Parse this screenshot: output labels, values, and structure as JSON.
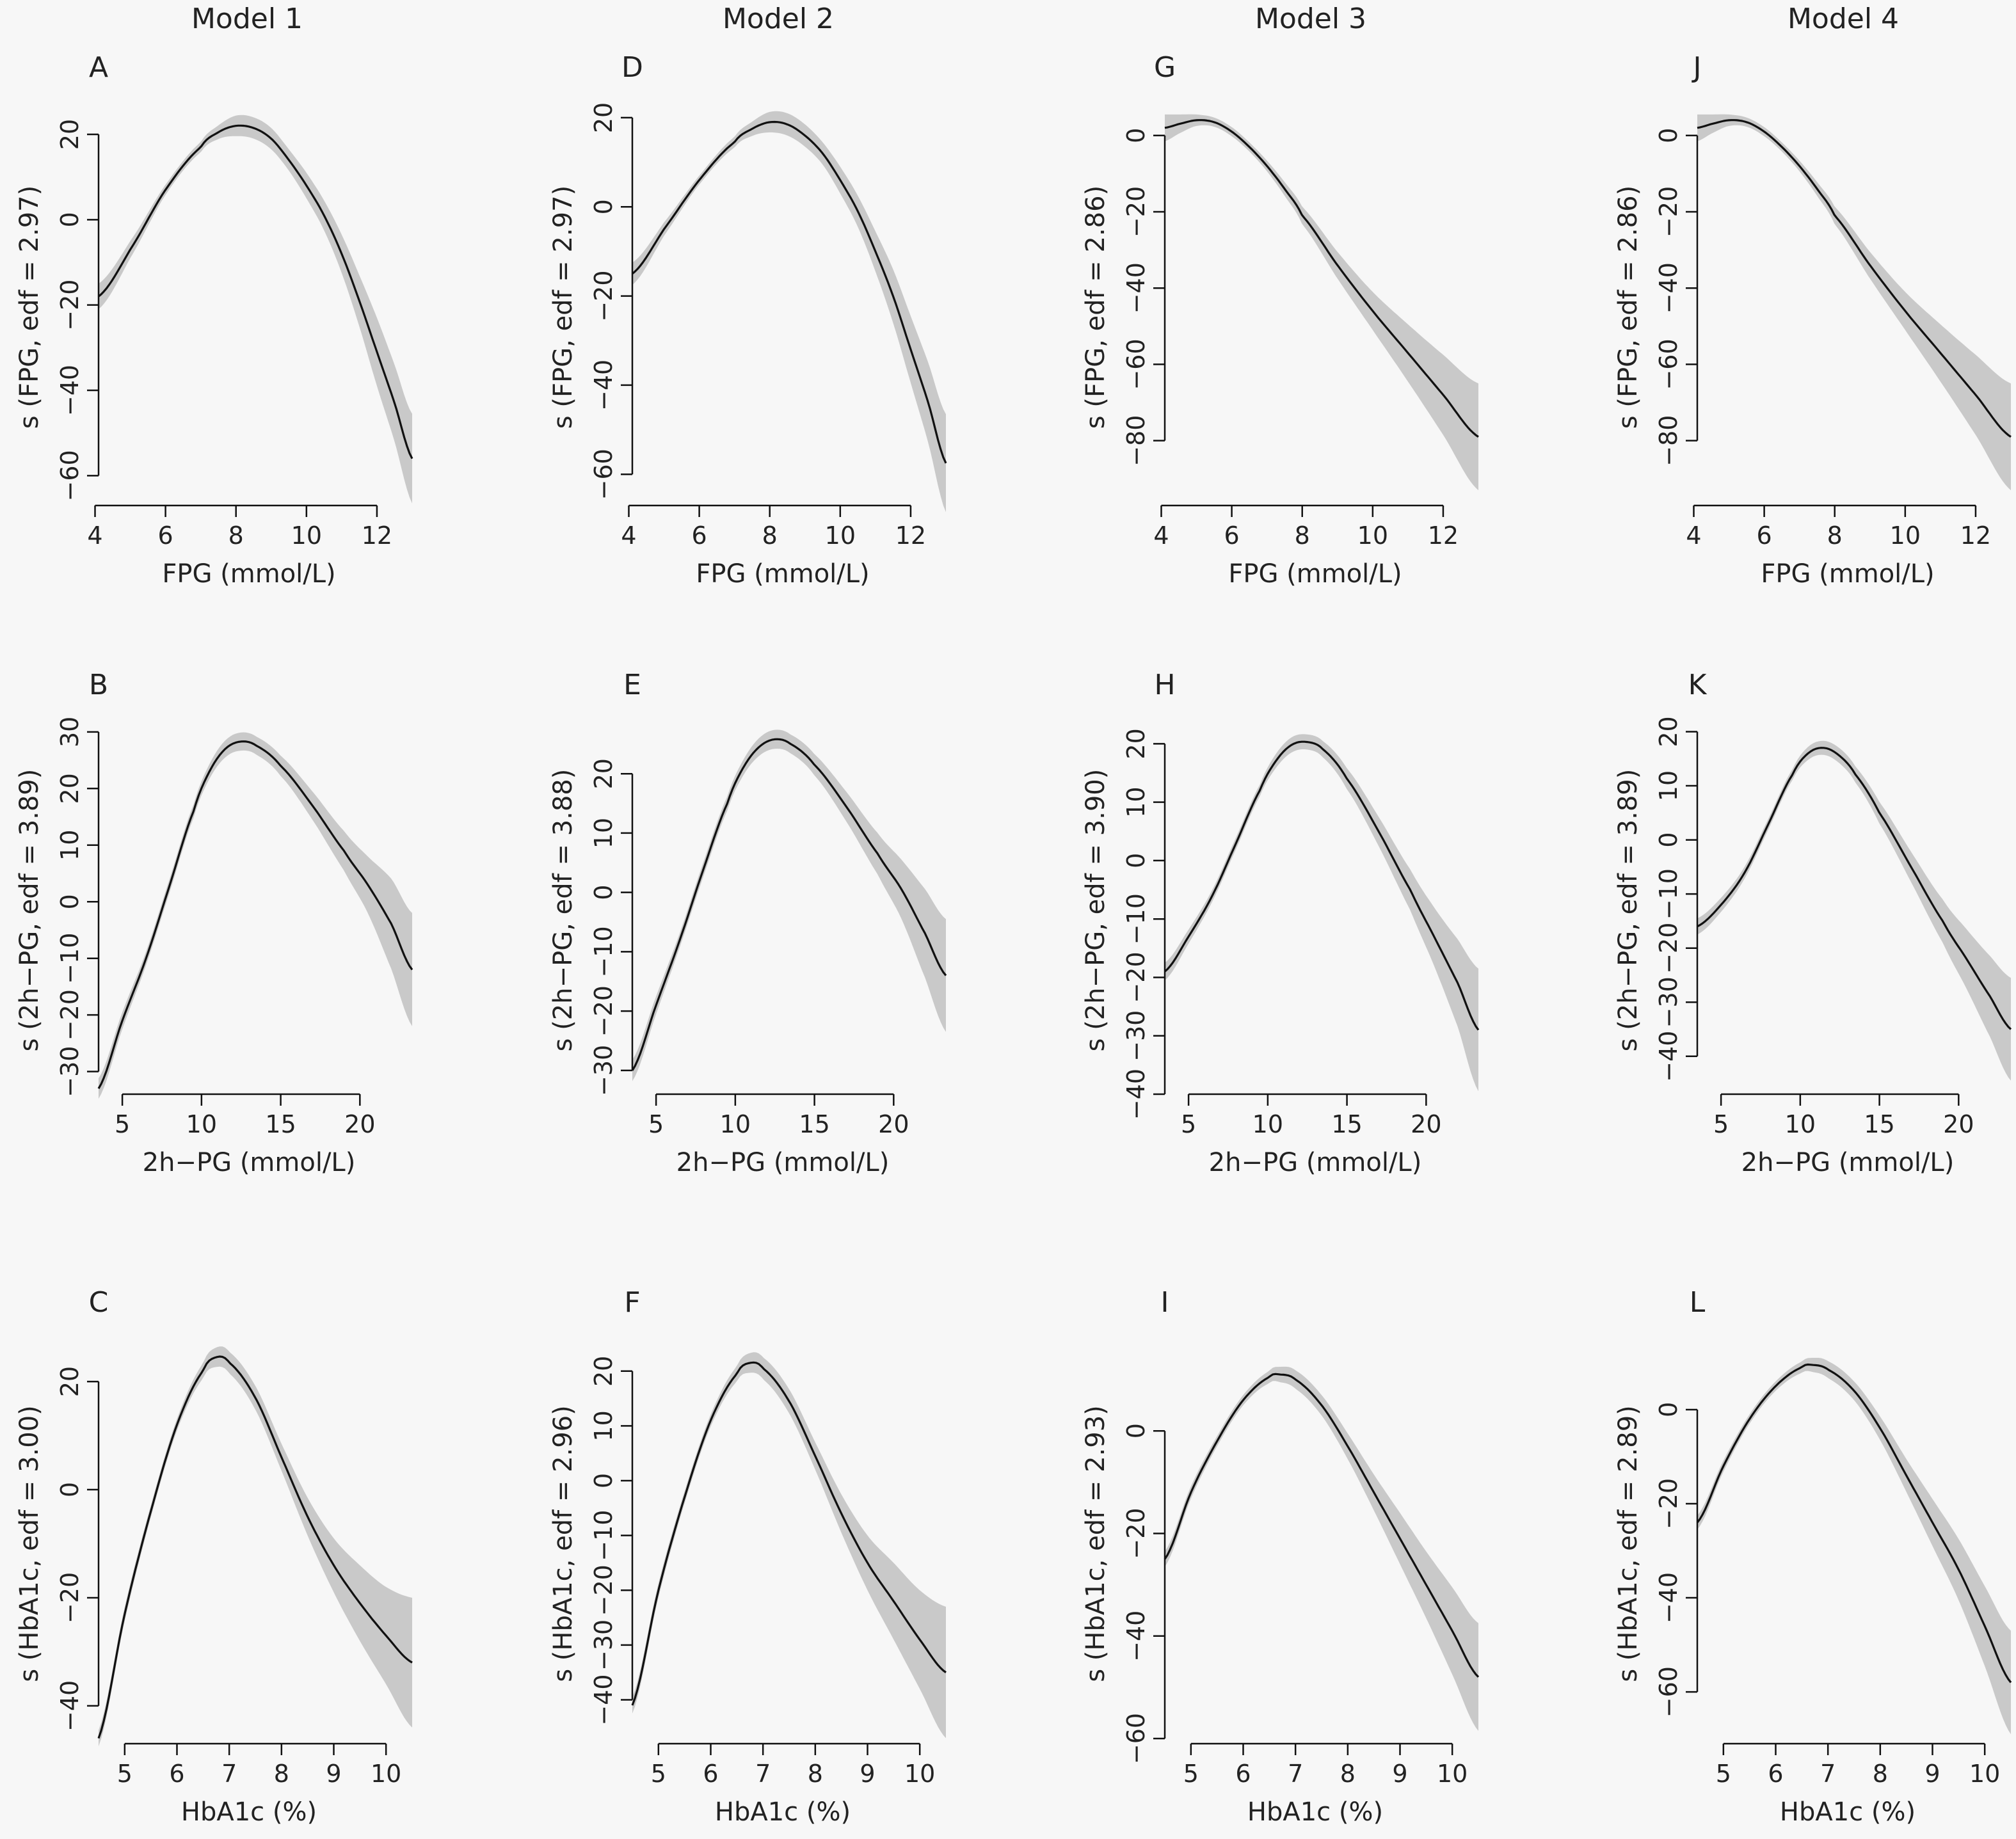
{
  "model_titles": [
    "Model  1",
    "Model  2",
    "Model  3",
    "Model  4"
  ],
  "chart_data": [
    {
      "id": "A",
      "type": "line",
      "model": 1,
      "row": 0,
      "xlabel": "FPG (mmol/L)",
      "ylabel": "s (FPG, edf = 2.97)",
      "xlim": [
        4.1,
        13.0
      ],
      "ylim": [
        -67,
        26
      ],
      "xticks": [
        4,
        6,
        8,
        10,
        12
      ],
      "yticks": [
        20,
        0,
        -20,
        -40,
        -60
      ],
      "x": [
        4.1,
        5,
        6,
        7,
        7.5,
        8,
        8.5,
        9,
        9.5,
        10,
        10.5,
        11,
        11.5,
        12,
        12.5,
        13
      ],
      "y": [
        -18,
        -7,
        7,
        17,
        20.5,
        22,
        21.5,
        19,
        14,
        8,
        1,
        -8,
        -19,
        -31,
        -43,
        -56
      ],
      "band": [
        3,
        2,
        1.2,
        1.2,
        1.6,
        2.4,
        2.5,
        2.5,
        2.5,
        3,
        3.5,
        4.5,
        6,
        8,
        9,
        10.5
      ]
    },
    {
      "id": "B",
      "type": "line",
      "model": 1,
      "row": 1,
      "xlabel": "2h−PG (mmol/L)",
      "ylabel": "s (2h−PG, edf = 3.89)",
      "xlim": [
        3.5,
        23.3
      ],
      "ylim": [
        -34,
        31
      ],
      "xticks": [
        5,
        10,
        15,
        20
      ],
      "yticks": [
        30,
        20,
        10,
        0,
        -10,
        -20,
        -30
      ],
      "x": [
        3.5,
        5,
        6.5,
        8,
        9.5,
        10.5,
        11.5,
        12.5,
        13.5,
        15,
        17,
        19,
        20.5,
        22,
        23.3
      ],
      "y": [
        -33,
        -21,
        -10,
        3,
        16,
        23,
        27,
        28.3,
        27.5,
        24,
        17,
        9,
        3,
        -4,
        -12
      ],
      "band": [
        1.8,
        1.5,
        1.2,
        1.2,
        1.2,
        1.3,
        1.5,
        1.6,
        1.6,
        1.8,
        2.5,
        3.5,
        5,
        8,
        10
      ]
    },
    {
      "id": "C",
      "type": "line",
      "model": 1,
      "row": 2,
      "xlabel": "HbA1c (%)",
      "ylabel": "s (HbA1c, edf = 3.00)",
      "xlim": [
        4.5,
        10.5
      ],
      "ylim": [
        -47,
        27
      ],
      "xticks": [
        5,
        6,
        7,
        8,
        9,
        10
      ],
      "yticks": [
        20,
        0,
        -20,
        -40
      ],
      "x": [
        4.5,
        5,
        5.5,
        6,
        6.5,
        6.75,
        7,
        7.5,
        8,
        8.5,
        9,
        9.5,
        10,
        10.5
      ],
      "y": [
        -46,
        -23,
        -4,
        12,
        22,
        24.5,
        23.5,
        17,
        6,
        -5,
        -14,
        -21,
        -27,
        -32
      ],
      "band": [
        1.5,
        1.3,
        1.1,
        1.1,
        1.4,
        1.8,
        2,
        2.2,
        2.5,
        3.5,
        5,
        7,
        9,
        12
      ]
    },
    {
      "id": "D",
      "type": "line",
      "model": 2,
      "row": 0,
      "xlabel": "FPG (mmol/L)",
      "ylabel": "s (FPG, edf = 2.97)",
      "xlim": [
        4.1,
        13.0
      ],
      "ylim": [
        -67,
        22
      ],
      "xticks": [
        4,
        6,
        8,
        10,
        12
      ],
      "yticks": [
        20,
        0,
        -20,
        -40,
        -60
      ],
      "x": [
        4.1,
        5,
        6,
        7,
        7.5,
        8,
        8.5,
        9,
        9.5,
        10,
        10.5,
        11,
        11.5,
        12,
        12.5,
        13
      ],
      "y": [
        -15,
        -5,
        6,
        14.5,
        17.5,
        19,
        18.5,
        16,
        12,
        6,
        -1,
        -10,
        -20,
        -32,
        -44,
        -57.5
      ],
      "band": [
        2.5,
        1.5,
        1,
        1.2,
        1.6,
        2.3,
        2.5,
        2.5,
        2.5,
        3,
        3.5,
        4.5,
        6,
        7.5,
        9,
        11
      ]
    },
    {
      "id": "E",
      "type": "line",
      "model": 2,
      "row": 1,
      "xlabel": "2h−PG (mmol/L)",
      "ylabel": "s (2h−PG, edf = 3.88)",
      "xlim": [
        3.5,
        23.3
      ],
      "ylim": [
        -34,
        28
      ],
      "xticks": [
        5,
        10,
        15,
        20
      ],
      "yticks": [
        20,
        10,
        0,
        -10,
        -20,
        -30
      ],
      "x": [
        3.5,
        5,
        6.5,
        8,
        9.5,
        10.5,
        11.5,
        12.5,
        13.5,
        15,
        17,
        19,
        20.5,
        22,
        23.3
      ],
      "y": [
        -30,
        -19,
        -8,
        4,
        15,
        21,
        24.5,
        25.8,
        25,
        21.5,
        14.5,
        6.5,
        0.5,
        -7,
        -14
      ],
      "band": [
        1.8,
        1.5,
        1.2,
        1.2,
        1.2,
        1.3,
        1.5,
        1.6,
        1.6,
        1.8,
        2.5,
        3.5,
        5,
        7.5,
        9.5
      ]
    },
    {
      "id": "F",
      "type": "line",
      "model": 2,
      "row": 2,
      "xlabel": "HbA1c (%)",
      "ylabel": "s (HbA1c, edf = 2.96)",
      "xlim": [
        4.5,
        10.5
      ],
      "ylim": [
        -48,
        25
      ],
      "xticks": [
        5,
        6,
        7,
        8,
        9,
        10
      ],
      "yticks": [
        20,
        10,
        0,
        -10,
        -20,
        -30,
        -40
      ],
      "x": [
        4.5,
        5,
        5.5,
        6,
        6.5,
        6.75,
        7,
        7.5,
        8,
        8.5,
        9,
        9.5,
        10,
        10.5
      ],
      "y": [
        -41,
        -20,
        -3,
        11,
        19.5,
        21.5,
        20.5,
        14.5,
        4.5,
        -6,
        -15,
        -22,
        -29,
        -35
      ],
      "band": [
        1.5,
        1.3,
        1.1,
        1.1,
        1.4,
        1.8,
        2,
        2.2,
        2.5,
        3.5,
        5,
        7,
        9,
        12
      ]
    },
    {
      "id": "G",
      "type": "line",
      "model": 3,
      "row": 0,
      "xlabel": "FPG (mmol/L)",
      "ylabel": "s (FPG, edf = 2.86)",
      "xlim": [
        4.1,
        13.0
      ],
      "ylim": [
        -97,
        7
      ],
      "xticks": [
        4,
        6,
        8,
        10,
        12
      ],
      "yticks": [
        0,
        -20,
        -40,
        -60,
        -80
      ],
      "x": [
        4.1,
        4.5,
        5,
        5.5,
        6,
        6.5,
        7,
        7.5,
        8,
        9,
        10,
        11,
        12,
        13
      ],
      "y": [
        2,
        3,
        4,
        3.5,
        1,
        -3,
        -8,
        -14,
        -21,
        -34,
        -46,
        -57,
        -68,
        -79
      ],
      "band": [
        3.5,
        2.5,
        1.5,
        1.2,
        1.2,
        1.2,
        1.4,
        1.8,
        2.3,
        3.5,
        5,
        7.5,
        10.5,
        14
      ]
    },
    {
      "id": "H",
      "type": "line",
      "model": 3,
      "row": 1,
      "xlabel": "2h−PG (mmol/L)",
      "ylabel": "s (2h−PG, edf = 3.90)",
      "xlim": [
        3.5,
        23.3
      ],
      "ylim": [
        -40,
        23
      ],
      "xticks": [
        5,
        10,
        15,
        20
      ],
      "yticks": [
        20,
        10,
        0,
        -10,
        -20,
        -30,
        -40
      ],
      "x": [
        3.5,
        5,
        6.5,
        8,
        9.5,
        10.5,
        11.5,
        12.5,
        13.5,
        15,
        17,
        19,
        20.5,
        22,
        23.3
      ],
      "y": [
        -19,
        -13,
        -6,
        3,
        12,
        17,
        19.8,
        20.3,
        19,
        14,
        5,
        -5,
        -13,
        -21,
        -29
      ],
      "band": [
        1.5,
        1.2,
        1,
        1,
        1,
        1.2,
        1.3,
        1.3,
        1.4,
        1.8,
        2.5,
        3.5,
        5,
        7.5,
        10.5
      ]
    },
    {
      "id": "I",
      "type": "line",
      "model": 3,
      "row": 2,
      "xlabel": "HbA1c (%)",
      "ylabel": "s (HbA1c, edf = 2.93)",
      "xlim": [
        4.5,
        10.5
      ],
      "ylim": [
        -61,
        17
      ],
      "xticks": [
        5,
        6,
        7,
        8,
        9,
        10
      ],
      "yticks": [
        0,
        -20,
        -40,
        -60
      ],
      "x": [
        4.5,
        5,
        5.5,
        6,
        6.5,
        6.7,
        7,
        7.5,
        8,
        8.5,
        9,
        9.5,
        10,
        10.5
      ],
      "y": [
        -25,
        -12,
        -2,
        6,
        10.5,
        11,
        10,
        5,
        -3,
        -12,
        -21,
        -30,
        -39,
        -48
      ],
      "band": [
        1.5,
        1.2,
        1,
        1,
        1.2,
        1.5,
        1.8,
        2,
        2.5,
        3.5,
        5,
        6.5,
        8.5,
        10.5
      ]
    },
    {
      "id": "J",
      "type": "line",
      "model": 4,
      "row": 0,
      "xlabel": "FPG (mmol/L)",
      "ylabel": "s (FPG, edf = 2.86)",
      "xlim": [
        4.1,
        13.0
      ],
      "ylim": [
        -97,
        7
      ],
      "xticks": [
        4,
        6,
        8,
        10,
        12
      ],
      "yticks": [
        0,
        -20,
        -40,
        -60,
        -80
      ],
      "x": [
        4.1,
        4.5,
        5,
        5.5,
        6,
        6.5,
        7,
        7.5,
        8,
        9,
        10,
        11,
        12,
        13
      ],
      "y": [
        2,
        3,
        4,
        3.5,
        1,
        -3,
        -8,
        -14,
        -21,
        -34,
        -46,
        -57,
        -68,
        -79
      ],
      "band": [
        3.5,
        2.5,
        1.5,
        1.2,
        1.2,
        1.2,
        1.4,
        1.8,
        2.3,
        3.5,
        5,
        7.5,
        10.5,
        14
      ]
    },
    {
      "id": "K",
      "type": "line",
      "model": 4,
      "row": 1,
      "xlabel": "2h−PG (mmol/L)",
      "ylabel": "s (2h−PG, edf = 3.89)",
      "xlim": [
        3.5,
        23.3
      ],
      "ylim": [
        -47,
        21
      ],
      "xticks": [
        5,
        10,
        15,
        20
      ],
      "yticks": [
        20,
        10,
        0,
        -10,
        -20,
        -30,
        -40
      ],
      "x": [
        3.5,
        5,
        6.5,
        8,
        9.5,
        10.5,
        11.5,
        12.5,
        13.5,
        15,
        17,
        19,
        20.5,
        22,
        23.3
      ],
      "y": [
        -16,
        -12,
        -6,
        3,
        12,
        16,
        17,
        15.5,
        12,
        5,
        -5,
        -15,
        -22,
        -29,
        -35
      ],
      "band": [
        1.5,
        1.3,
        1.1,
        1,
        1,
        1.2,
        1.3,
        1.4,
        1.5,
        2,
        2.8,
        4,
        5.5,
        7.5,
        9.5
      ]
    },
    {
      "id": "L",
      "type": "line",
      "model": 4,
      "row": 2,
      "xlabel": "HbA1c (%)",
      "ylabel": "s (HbA1c, edf = 2.89)",
      "xlim": [
        4.5,
        10.5
      ],
      "ylim": [
        -71,
        14
      ],
      "xticks": [
        5,
        6,
        7,
        8,
        9,
        10
      ],
      "yticks": [
        0,
        -20,
        -40,
        -60
      ],
      "x": [
        4.5,
        5,
        5.5,
        6,
        6.5,
        6.7,
        7,
        7.5,
        8,
        8.5,
        9,
        9.5,
        10,
        10.5
      ],
      "y": [
        -24,
        -12,
        -2,
        5,
        9,
        9.5,
        8.5,
        4,
        -4,
        -14,
        -24,
        -34,
        -46,
        -58
      ],
      "band": [
        1.5,
        1.2,
        1,
        1,
        1.2,
        1.5,
        1.8,
        2,
        2.5,
        3.5,
        5,
        6.5,
        8.5,
        11
      ]
    }
  ]
}
